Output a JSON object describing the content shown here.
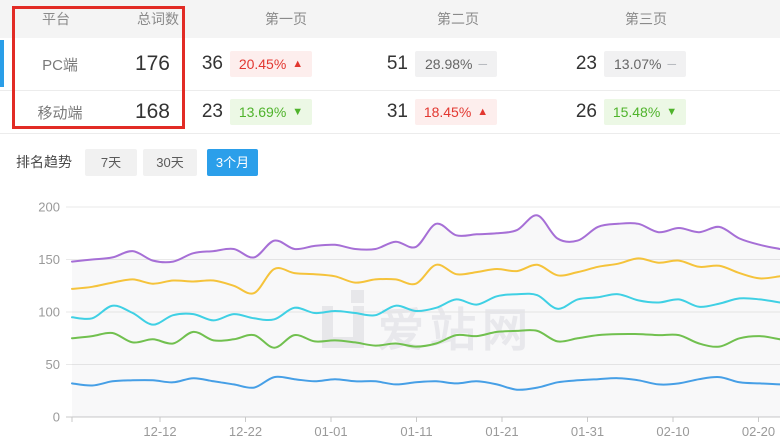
{
  "table": {
    "headers": {
      "platform": "平台",
      "total": "总词数",
      "page1": "第一页",
      "page2": "第二页",
      "page3": "第三页"
    },
    "rows": [
      {
        "platform": "PC端",
        "total": "176",
        "pages": [
          {
            "count": "36",
            "pct": "20.45%",
            "trend": "up"
          },
          {
            "count": "51",
            "pct": "28.98%",
            "trend": "flat"
          },
          {
            "count": "23",
            "pct": "13.07%",
            "trend": "flat"
          }
        ]
      },
      {
        "platform": "移动端",
        "total": "168",
        "pages": [
          {
            "count": "23",
            "pct": "13.69%",
            "trend": "down"
          },
          {
            "count": "31",
            "pct": "18.45%",
            "trend": "up"
          },
          {
            "count": "26",
            "pct": "15.48%",
            "trend": "down"
          }
        ]
      }
    ]
  },
  "icons": {
    "up": "▲",
    "down": "▼",
    "flat": "─"
  },
  "trend_section": {
    "label": "排名趋势",
    "tabs": [
      {
        "label": "7天",
        "active": false
      },
      {
        "label": "30天",
        "active": false
      },
      {
        "label": "3个月",
        "active": true
      }
    ]
  },
  "watermark": "爱站网",
  "colors": {
    "highlight_box": "#e22b25",
    "active_tab": "#2b9fea",
    "up_red": "#e23730",
    "down_green": "#4fb32b",
    "series": [
      "#a66fd6",
      "#f5c33b",
      "#3fd0e4",
      "#71c04f",
      "#469fe6"
    ]
  },
  "chart_data": {
    "type": "line",
    "title": "排名趋势 (3个月)",
    "y_ticks": [
      0,
      50,
      100,
      150,
      200
    ],
    "ylim": [
      0,
      200
    ],
    "x_tick_labels": [
      "12-12",
      "12-22",
      "01-01",
      "01-11",
      "01-21",
      "01-31",
      "02-10",
      "02-20"
    ],
    "grid": true,
    "legend": "none",
    "series": [
      {
        "name": "series-1-purple",
        "color": "#a66fd6",
        "values": [
          148,
          150,
          152,
          158,
          149,
          148,
          156,
          158,
          160,
          152,
          168,
          160,
          163,
          164,
          160,
          160,
          167,
          162,
          184,
          173,
          174,
          175,
          178,
          192,
          170,
          168,
          181,
          184,
          184,
          176,
          180,
          176,
          181,
          170,
          164,
          160
        ]
      },
      {
        "name": "series-2-yellow",
        "color": "#f5c33b",
        "values": [
          122,
          124,
          128,
          131,
          127,
          130,
          129,
          130,
          125,
          118,
          141,
          137,
          136,
          134,
          128,
          131,
          131,
          127,
          145,
          136,
          138,
          141,
          139,
          145,
          135,
          138,
          143,
          146,
          151,
          147,
          149,
          143,
          144,
          137,
          132,
          134
        ]
      },
      {
        "name": "series-3-cyan",
        "color": "#3fd0e4",
        "values": [
          95,
          94,
          106,
          99,
          88,
          97,
          98,
          92,
          98,
          94,
          93,
          104,
          99,
          101,
          99,
          97,
          106,
          101,
          104,
          112,
          107,
          115,
          117,
          116,
          103,
          112,
          114,
          117,
          111,
          109,
          112,
          105,
          108,
          113,
          112,
          109
        ]
      },
      {
        "name": "series-4-green",
        "color": "#71c04f",
        "values": [
          75,
          77,
          80,
          71,
          74,
          70,
          81,
          73,
          74,
          78,
          66,
          78,
          72,
          73,
          71,
          68,
          70,
          67,
          70,
          78,
          77,
          81,
          82,
          82,
          72,
          75,
          78,
          79,
          79,
          78,
          78,
          70,
          67,
          75,
          77,
          74
        ]
      },
      {
        "name": "series-5-blue",
        "color": "#469fe6",
        "values": [
          32,
          30,
          34,
          35,
          35,
          33,
          37,
          34,
          31,
          28,
          38,
          36,
          34,
          36,
          34,
          34,
          31,
          33,
          34,
          32,
          34,
          31,
          26,
          28,
          33,
          35,
          36,
          37,
          35,
          31,
          32,
          36,
          38,
          33,
          32,
          31
        ]
      }
    ]
  }
}
